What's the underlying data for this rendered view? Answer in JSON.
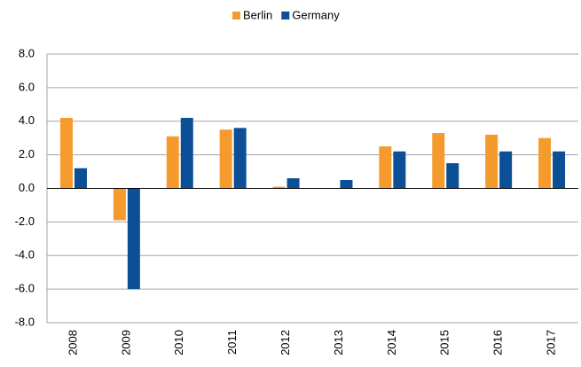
{
  "chart_data": {
    "type": "bar",
    "categories": [
      "2008",
      "2009",
      "2010",
      "2011",
      "2012",
      "2013",
      "2014",
      "2015",
      "2016",
      "2017"
    ],
    "series": [
      {
        "name": "Berlin",
        "color": "#f59b2e",
        "values": [
          4.2,
          -1.9,
          3.1,
          3.5,
          0.1,
          0.0,
          2.5,
          3.3,
          3.2,
          3.0
        ]
      },
      {
        "name": "Germany",
        "color": "#0b4f97",
        "values": [
          1.2,
          -6.0,
          4.2,
          3.6,
          0.6,
          0.5,
          2.2,
          1.5,
          2.2,
          2.2
        ]
      }
    ],
    "ylim": [
      -8,
      8
    ],
    "yticks": [
      {
        "value": -8,
        "label": "-8.0"
      },
      {
        "value": -6,
        "label": "-6.0"
      },
      {
        "value": -4,
        "label": "-4.0"
      },
      {
        "value": -2,
        "label": "-2.0"
      },
      {
        "value": 0,
        "label": "0.0"
      },
      {
        "value": 2,
        "label": "2.0"
      },
      {
        "value": 4,
        "label": "4.0"
      },
      {
        "value": 6,
        "label": "6.0"
      },
      {
        "value": 8,
        "label": "8.0"
      }
    ],
    "grid": true,
    "legend": "top"
  }
}
